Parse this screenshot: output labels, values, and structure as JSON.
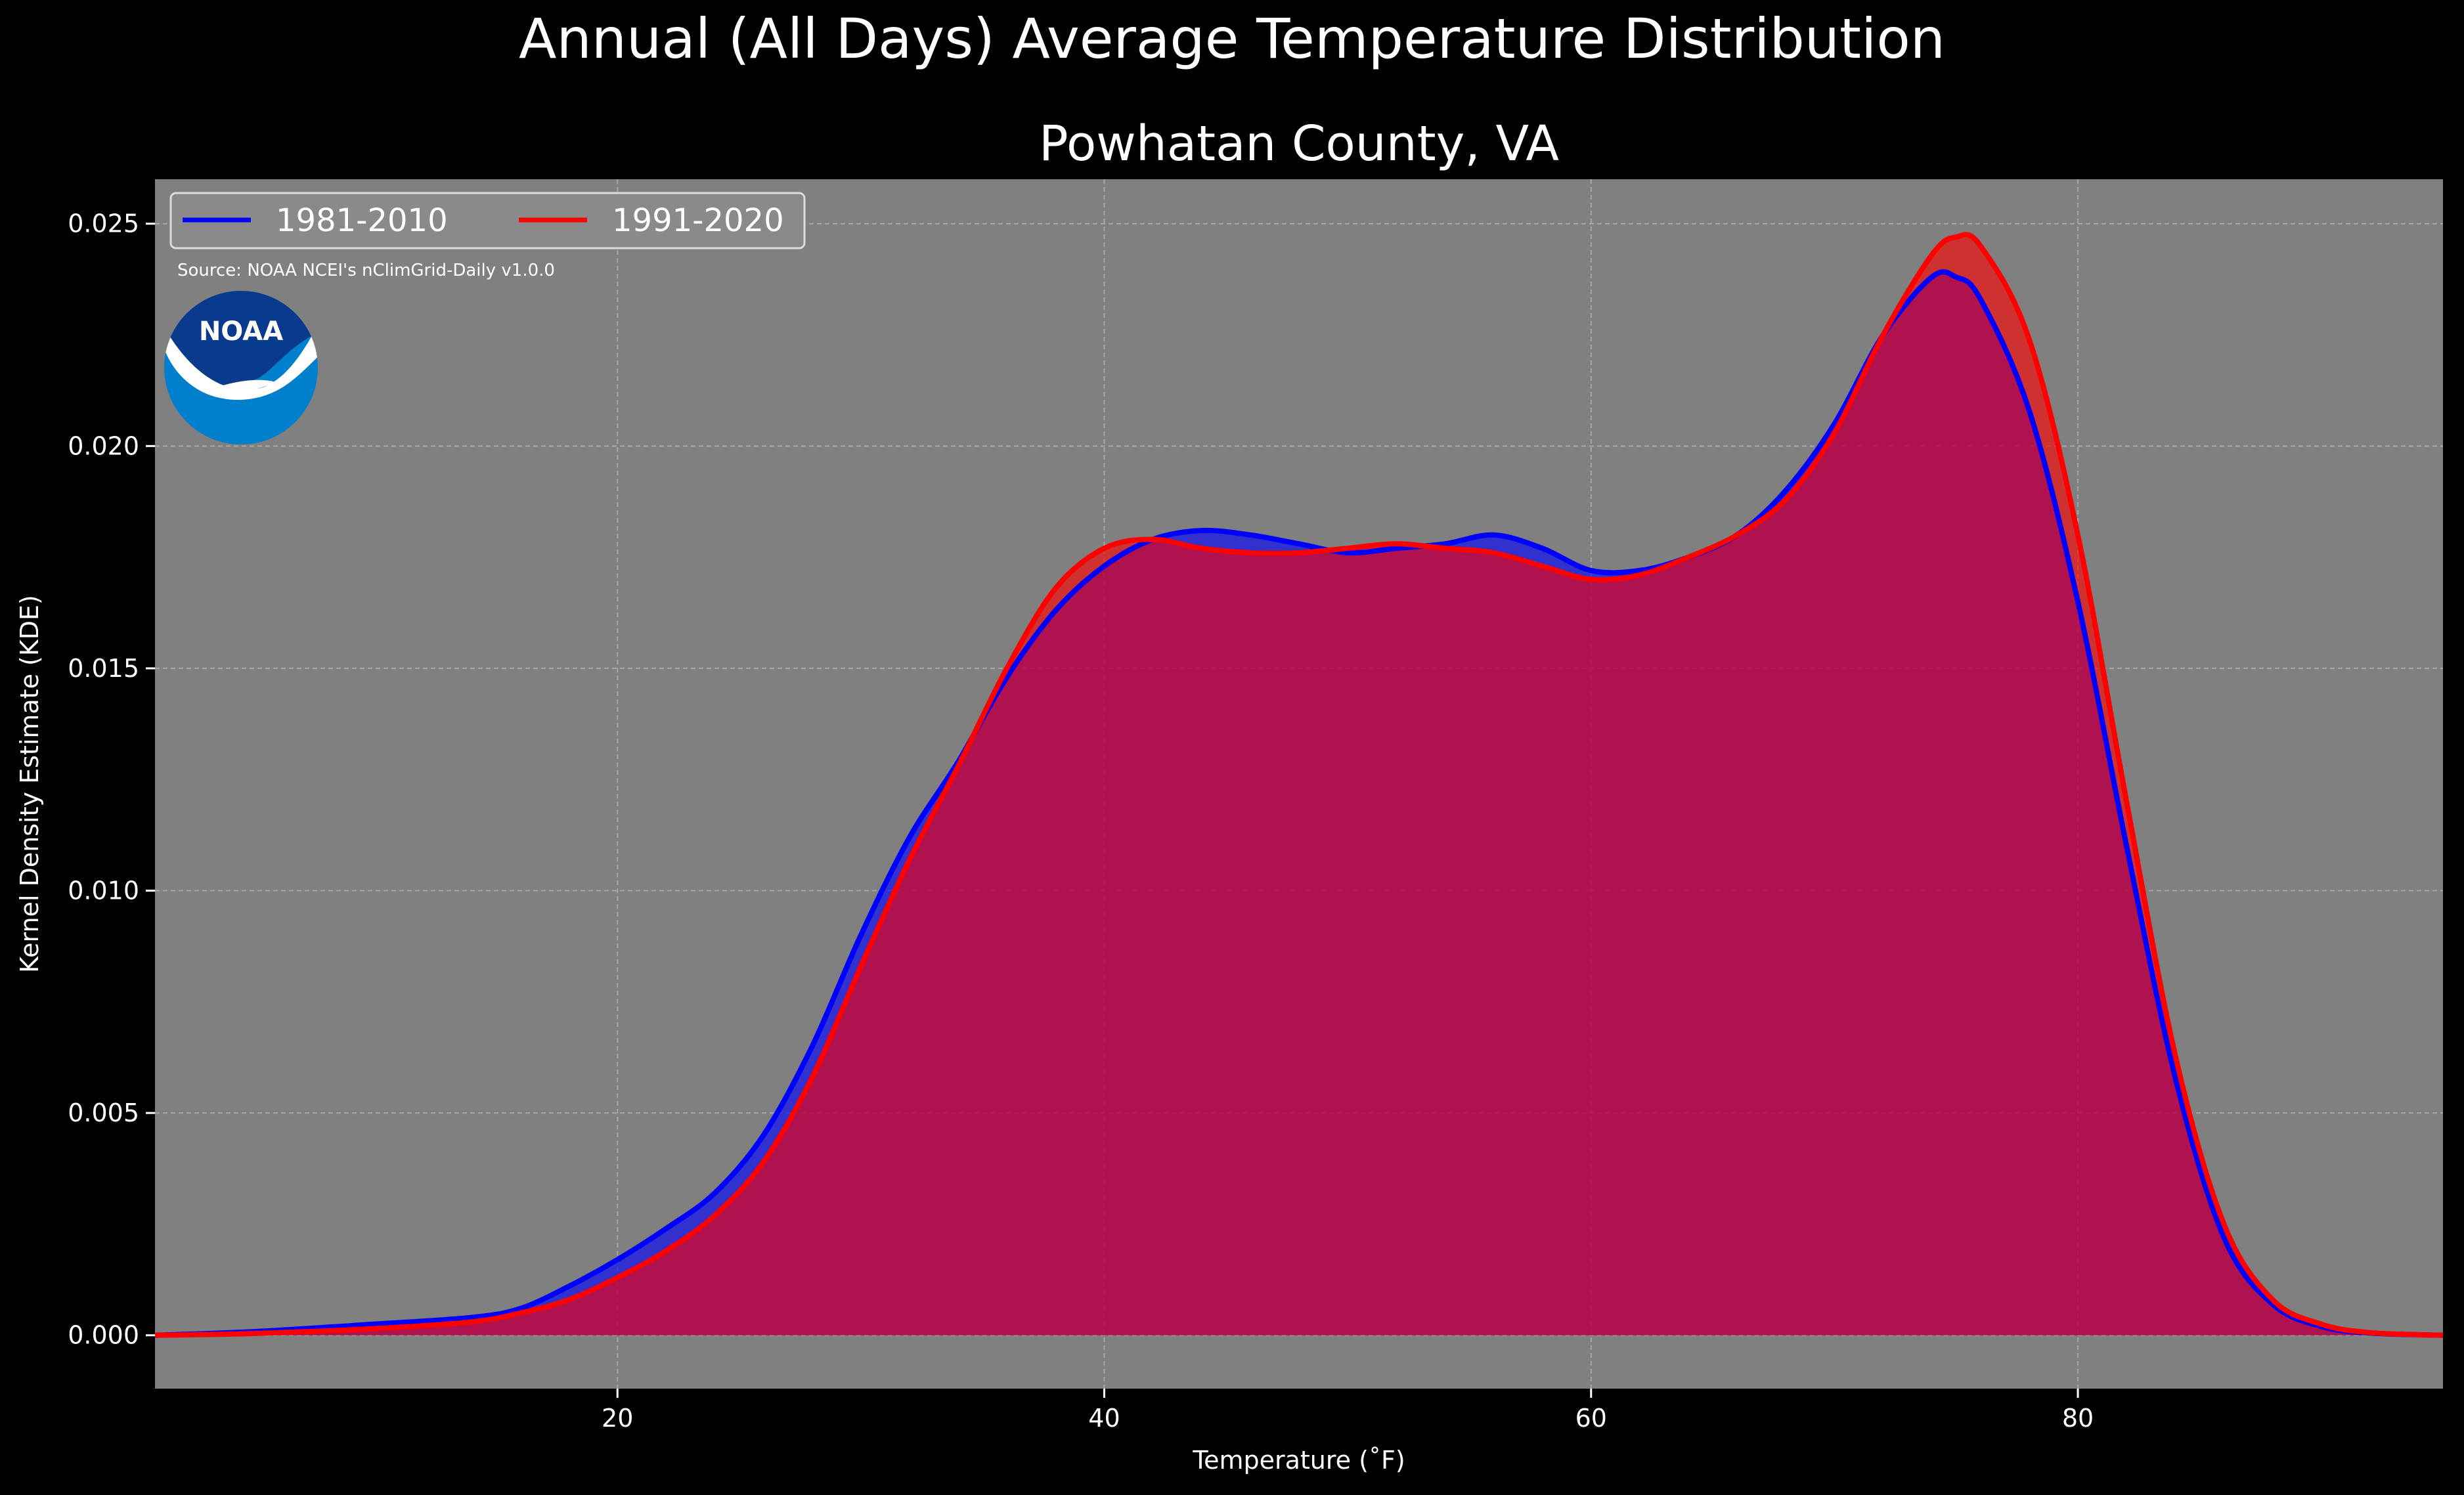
{
  "figure": {
    "suptitle": "Annual (All Days) Average Temperature Distribution",
    "title": "Powhatan County, VA",
    "source": "Source: NOAA NCEI's nClimGrid-Daily v1.0.0",
    "logo_text": "NOAA"
  },
  "colors": {
    "figure_background": "#000000",
    "plot_background": "#808080",
    "series_1981": "#0000ff",
    "series_1991": "#ff0000",
    "fill_overlap": "#9e1e5e",
    "noaa_dark": "#0a3a8c",
    "noaa_light": "#0080cc"
  },
  "chart_data": {
    "type": "area",
    "title": "Powhatan County, VA",
    "xlabel": "Temperature ($^\\circ$F)",
    "xlabel_display": "Temperature (˚F)",
    "ylabel": "Kernel Density Estimate (KDE)",
    "xlim": [
      1,
      95
    ],
    "ylim": [
      -0.0012,
      0.026
    ],
    "xticks": [
      20,
      40,
      60,
      80
    ],
    "yticks": [
      0.0,
      0.005,
      0.01,
      0.015,
      0.02,
      0.025
    ],
    "ytick_labels": [
      "0.000",
      "0.005",
      "0.010",
      "0.015",
      "0.020",
      "0.025"
    ],
    "grid": true,
    "legend": "top-left",
    "series": [
      {
        "name": "1981-2010",
        "color": "#0000ff",
        "x": [
          1,
          5,
          10,
          14,
          16,
          18,
          20,
          22,
          24,
          26,
          28,
          30,
          32,
          34,
          36,
          38,
          40,
          42,
          44,
          46,
          48,
          50,
          52,
          54,
          56,
          58,
          60,
          62,
          64,
          66,
          68,
          70,
          72,
          74,
          75,
          76,
          78,
          80,
          82,
          84,
          86,
          88,
          90,
          92,
          95
        ],
        "y": [
          0.0,
          8e-05,
          0.00025,
          0.0004,
          0.0006,
          0.0011,
          0.0017,
          0.0024,
          0.0032,
          0.0045,
          0.0065,
          0.009,
          0.0112,
          0.0129,
          0.0148,
          0.0163,
          0.0173,
          0.0179,
          0.0181,
          0.018,
          0.0178,
          0.0176,
          0.0177,
          0.0178,
          0.018,
          0.0177,
          0.0172,
          0.0172,
          0.0175,
          0.018,
          0.019,
          0.0205,
          0.0225,
          0.0238,
          0.0238,
          0.0233,
          0.0208,
          0.0165,
          0.011,
          0.0058,
          0.0022,
          0.0007,
          0.0002,
          5e-05,
          0.0
        ]
      },
      {
        "name": "1991-2020",
        "color": "#ff0000",
        "x": [
          1,
          5,
          10,
          14,
          16,
          18,
          20,
          22,
          24,
          26,
          28,
          30,
          32,
          34,
          36,
          38,
          40,
          42,
          44,
          46,
          48,
          50,
          52,
          54,
          56,
          58,
          60,
          62,
          64,
          66,
          68,
          70,
          72,
          74,
          75,
          76,
          78,
          80,
          82,
          84,
          86,
          88,
          90,
          92,
          95
        ],
        "y": [
          0.0,
          4e-05,
          0.00015,
          0.0003,
          0.0005,
          0.0008,
          0.0013,
          0.0019,
          0.0027,
          0.0039,
          0.0058,
          0.0083,
          0.0107,
          0.0128,
          0.015,
          0.0168,
          0.0177,
          0.0179,
          0.0177,
          0.0176,
          0.0176,
          0.0177,
          0.0178,
          0.0177,
          0.0176,
          0.0173,
          0.017,
          0.0171,
          0.0175,
          0.018,
          0.0188,
          0.0203,
          0.0225,
          0.0243,
          0.0247,
          0.0245,
          0.0224,
          0.018,
          0.012,
          0.0063,
          0.0025,
          0.0008,
          0.00025,
          6e-05,
          0.0
        ]
      }
    ]
  }
}
